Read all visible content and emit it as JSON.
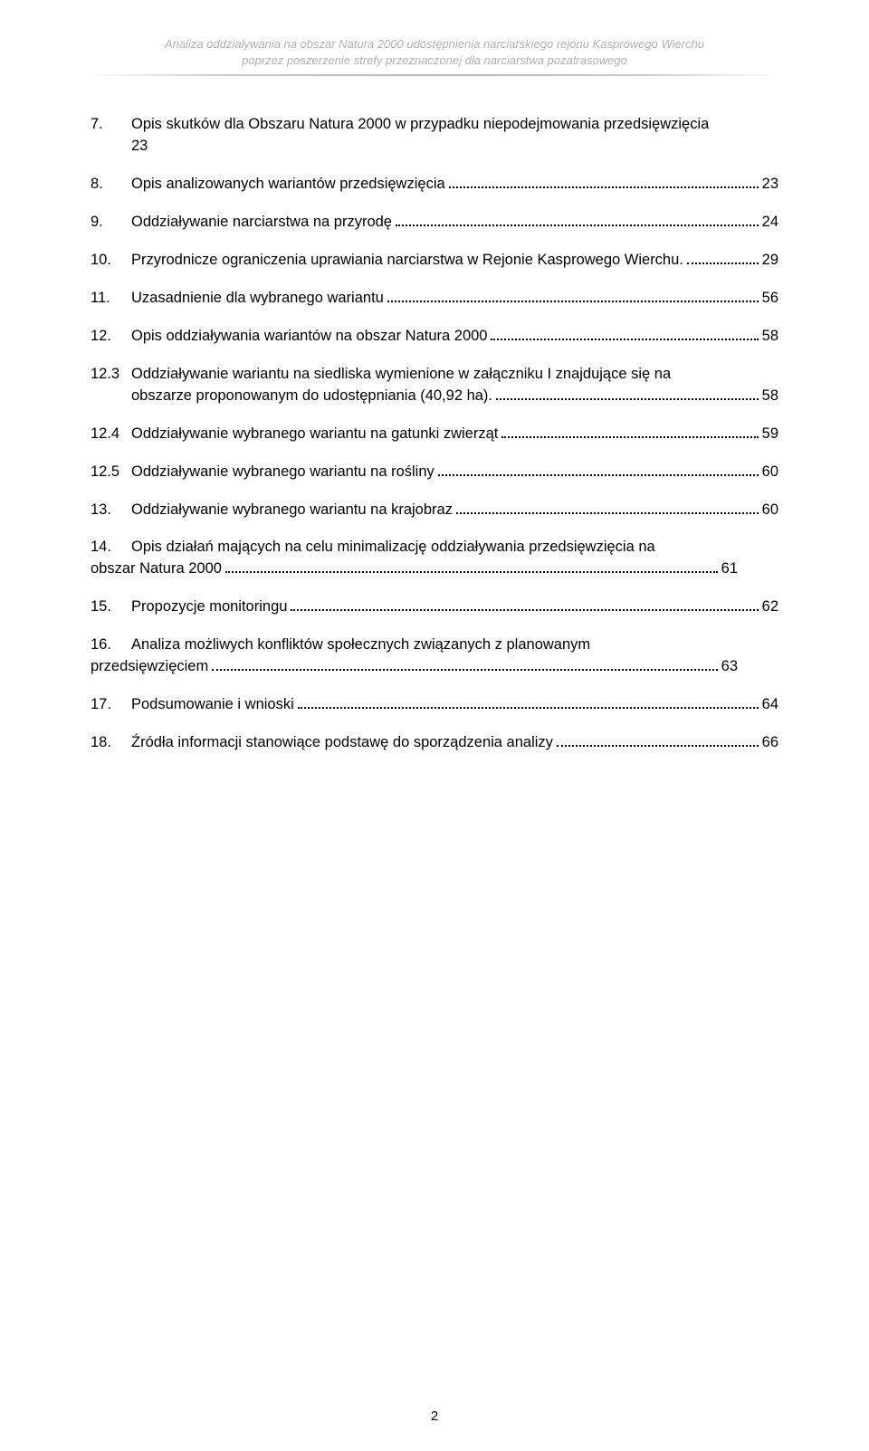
{
  "colors": {
    "page_bg": "#ffffff",
    "text": "#000000",
    "header_text": "#b0b0b0",
    "dot_leader": "#000000"
  },
  "typography": {
    "body_font": "Arial, Helvetica, sans-serif",
    "body_size_pt": 12,
    "header_size_pt": 10,
    "header_italic": true
  },
  "header": {
    "line1": "Analiza oddziaływania na obszar Natura 2000 udostępnienia narciarskiego rejonu Kasprowego Wierchu",
    "line2": "poprzez poszerzenie strefy przeznaczonej dla narciarstwa pozatrasowego"
  },
  "page_number": "2",
  "toc": [
    {
      "num": "7.",
      "text_first": "Opis skutków dla Obszaru Natura 2000 w przypadku niepodejmowania przedsięwzięcia",
      "text_last": "23",
      "page": "",
      "multiline_no_dots": true
    },
    {
      "num": "8.",
      "text_last": "Opis analizowanych wariantów przedsięwzięcia",
      "page": "23"
    },
    {
      "num": "9.",
      "text_last": "Oddziaływanie narciarstwa na przyrodę",
      "page": "24"
    },
    {
      "num": "10.",
      "text_last": "Przyrodnicze ograniczenia uprawiania narciarstwa w Rejonie Kasprowego Wierchu.",
      "page": "29"
    },
    {
      "num": "11.",
      "text_last": "Uzasadnienie dla wybranego wariantu",
      "page": "56"
    },
    {
      "num": "12.",
      "text_last": "Opis oddziaływania wariantów na obszar Natura 2000",
      "page": "58"
    },
    {
      "num": "12.3",
      "sub": true,
      "text_first": "Oddziaływanie wariantu na siedliska wymienione w załączniku I znajdujące się na",
      "text_last": "obszarze proponowanym do udostępniania (40,92 ha). ",
      "page": "58"
    },
    {
      "num": "12.4",
      "sub": true,
      "text_last": "Oddziaływanie wybranego wariantu na gatunki zwierząt",
      "page": "59"
    },
    {
      "num": "12.5",
      "sub": true,
      "text_last": "Oddziaływanie wybranego wariantu na rośliny",
      "page": "60"
    },
    {
      "num": "13.",
      "text_last": "Oddziaływanie wybranego wariantu na krajobraz",
      "page": "60"
    },
    {
      "num": "14.",
      "text_first": "Opis działań mających na celu minimalizację oddziaływania przedsięwzięcia na",
      "text_last": "obszar Natura 2000",
      "page": "61",
      "outdent_last": true
    },
    {
      "num": "15.",
      "text_last": "Propozycje monitoringu",
      "page": "62"
    },
    {
      "num": "16.",
      "text_first": "Analiza możliwych konfliktów społecznych związanych z planowanym",
      "text_last": "przedsięwzięciem",
      "page": "63",
      "outdent_last": true
    },
    {
      "num": "17.",
      "text_last": "Podsumowanie i wnioski",
      "page": "64"
    },
    {
      "num": "18.",
      "text_last": "Źródła informacji stanowiące podstawę do sporządzenia analizy",
      "page": "66"
    }
  ]
}
